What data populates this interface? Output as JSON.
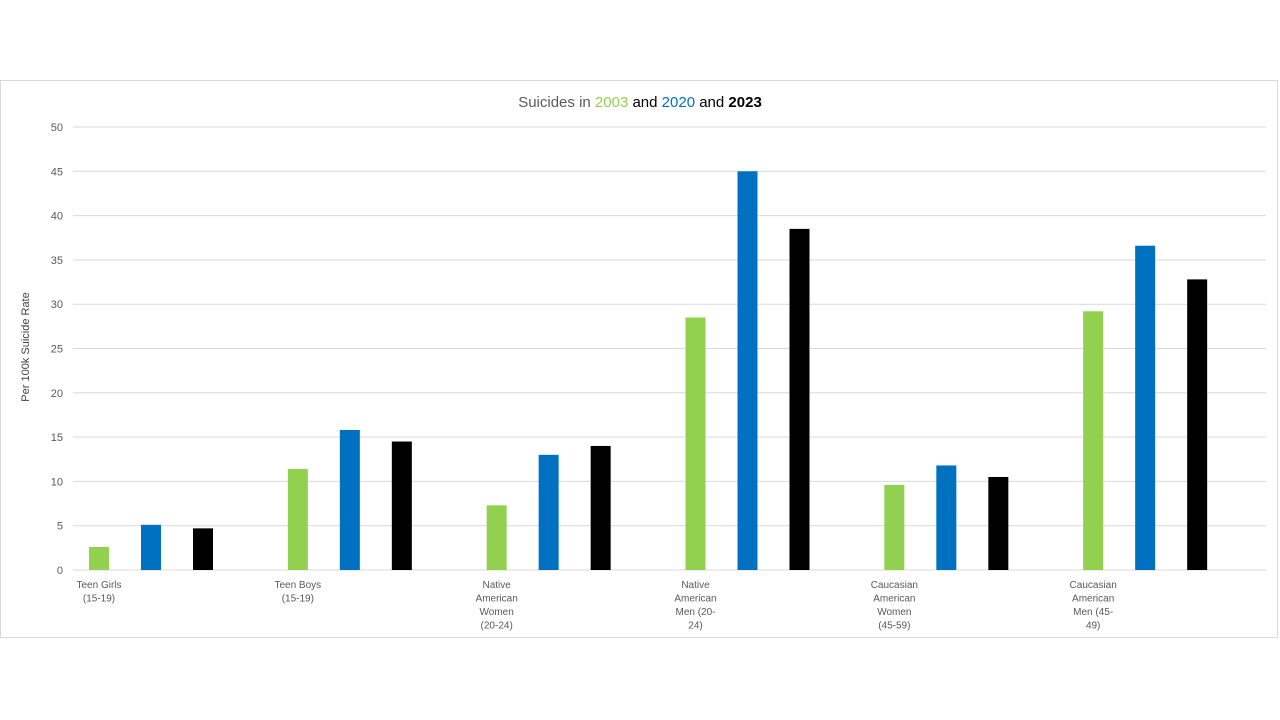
{
  "chart_data": {
    "type": "bar",
    "title_parts": [
      {
        "text": "Suicides in ",
        "color": "#595959",
        "bold": false
      },
      {
        "text": "2003",
        "color": "#92D050",
        "bold": false
      },
      {
        "text": " and ",
        "color": "#000000",
        "bold": false
      },
      {
        "text": "2020",
        "color": "#0070C0",
        "bold": false
      },
      {
        "text": " and ",
        "color": "#000000",
        "bold": false
      },
      {
        "text": "2023",
        "color": "#000000",
        "bold": true
      }
    ],
    "ylabel": "Per 100k Suicide Rate",
    "ylim": [
      0,
      50
    ],
    "yticks": [
      0,
      5,
      10,
      15,
      20,
      25,
      30,
      35,
      40,
      45,
      50
    ],
    "grid": true,
    "categories": [
      [
        "Teen Girls",
        "(15-19)"
      ],
      [
        "Teen Boys",
        "(15-19)"
      ],
      [
        "Native",
        "American",
        "Women",
        "(20-24)"
      ],
      [
        "Native",
        "American",
        "Men (20-",
        "24)"
      ],
      [
        "Caucasian",
        "American",
        "Women",
        "(45-59)"
      ],
      [
        "Caucasian",
        "American",
        "Men (45-",
        "49)"
      ]
    ],
    "series": [
      {
        "color": "#92D050",
        "values": [
          2.6,
          11.4,
          7.3,
          28.5,
          9.6,
          29.2
        ]
      },
      {
        "color": "#0070C0",
        "values": [
          5.1,
          15.8,
          13.0,
          45.0,
          11.8,
          36.6
        ]
      },
      {
        "color": "#000000",
        "values": [
          4.7,
          14.5,
          14.0,
          38.5,
          10.5,
          32.8
        ]
      }
    ]
  }
}
